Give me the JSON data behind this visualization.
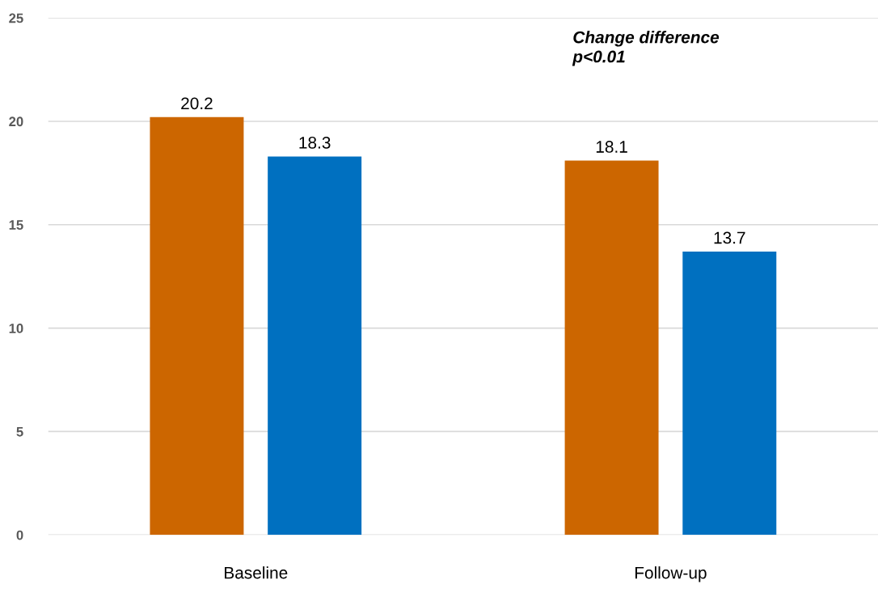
{
  "chart_data": {
    "type": "bar",
    "categories": [
      "Baseline",
      "Follow-up"
    ],
    "series": [
      {
        "color": "#cc6600",
        "values": [
          20.2,
          18.1
        ]
      },
      {
        "color": "#0070c0",
        "values": [
          18.3,
          13.7
        ]
      }
    ],
    "ylim": [
      0,
      25
    ],
    "yticks": [
      0,
      5,
      10,
      15,
      20,
      25
    ],
    "grid": "y",
    "data_labels": true,
    "legend": false,
    "annotations": [
      "Change difference\np<0.01"
    ]
  }
}
